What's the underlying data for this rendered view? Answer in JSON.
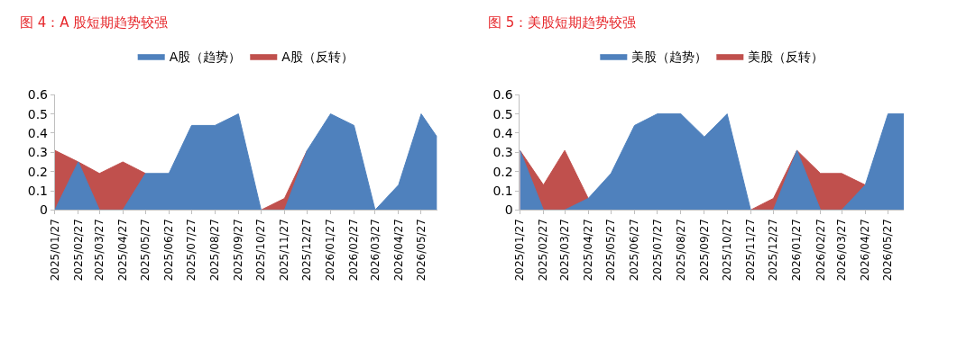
{
  "chart_data": [
    {
      "type": "area",
      "title": "图 4：A 股短期趋势较强",
      "legend": "top",
      "grid": false,
      "x": [
        "2025-01-27",
        "2025-02-27",
        "2025-03-27",
        "2025-04-27",
        "2025-05-27",
        "2025-06-27",
        "2025-07-27",
        "2025-08-27",
        "2025-09-27",
        "2025-10-27",
        "2025-11-27",
        "2025-12-27",
        "2026-01-27",
        "2026-02-27",
        "2026-03-27",
        "2026-04-27",
        "2026-05-27",
        "2026-06-17"
      ],
      "xlim": [
        "2025-01-27",
        "2026-06-17"
      ],
      "xticks": [
        {
          "value": "2025-01-27",
          "label": "2025/01/27"
        },
        {
          "value": "2025-02-27",
          "label": "2025/02/27"
        },
        {
          "value": "2025-03-27",
          "label": "2025/03/27"
        },
        {
          "value": "2025-04-27",
          "label": "2025/04/27"
        },
        {
          "value": "2025-05-27",
          "label": "2025/05/27"
        },
        {
          "value": "2025-06-27",
          "label": "2025/06/27"
        },
        {
          "value": "2025-07-27",
          "label": "2025/07/27"
        },
        {
          "value": "2025-08-27",
          "label": "2025/08/27"
        },
        {
          "value": "2025-09-27",
          "label": "2025/09/27"
        },
        {
          "value": "2025-10-27",
          "label": "2025/10/27"
        },
        {
          "value": "2025-11-27",
          "label": "2025/11/27"
        },
        {
          "value": "2025-12-27",
          "label": "2025/12/27"
        },
        {
          "value": "2026-01-27",
          "label": "2026/01/27"
        },
        {
          "value": "2026-02-27",
          "label": "2026/02/27"
        },
        {
          "value": "2026-03-27",
          "label": "2026/03/27"
        },
        {
          "value": "2026-04-27",
          "label": "2026/04/27"
        },
        {
          "value": "2026-05-27",
          "label": "2026/05/27"
        }
      ],
      "ylim": [
        0,
        0.6
      ],
      "yticks": [
        0,
        0.1,
        0.2,
        0.3,
        0.4,
        0.5,
        0.6
      ],
      "series": [
        {
          "name": "A股（趋势）",
          "color": "#4f81bd",
          "values": [
            0,
            0.25,
            0,
            0,
            0.19,
            0.19,
            0.44,
            0.44,
            0.5,
            0,
            0,
            0.31,
            0.5,
            0.44,
            0,
            0.13,
            0.5,
            0.38
          ]
        },
        {
          "name": "A股（反转）",
          "color": "#c0504d",
          "values": [
            0.31,
            0.25,
            0.19,
            0.25,
            0.19,
            null,
            null,
            null,
            null,
            0,
            0.06,
            0.31,
            null,
            null,
            0,
            null,
            null,
            null
          ]
        }
      ]
    },
    {
      "type": "area",
      "title": "图 5：美股短期趋势较强",
      "legend": "top",
      "grid": false,
      "x": [
        "2025-01-27",
        "2025-02-27",
        "2025-03-27",
        "2025-04-27",
        "2025-05-27",
        "2025-06-27",
        "2025-07-27",
        "2025-08-27",
        "2025-09-27",
        "2025-10-27",
        "2025-11-27",
        "2025-12-27",
        "2026-01-27",
        "2026-02-27",
        "2026-03-27",
        "2026-04-27",
        "2026-05-27",
        "2026-06-17"
      ],
      "xlim": [
        "2025-01-27",
        "2026-06-17"
      ],
      "xticks": [
        {
          "value": "2025-01-27",
          "label": "2025/01/27"
        },
        {
          "value": "2025-02-27",
          "label": "2025/02/27"
        },
        {
          "value": "2025-03-27",
          "label": "2025/03/27"
        },
        {
          "value": "2025-04-27",
          "label": "2025/04/27"
        },
        {
          "value": "2025-05-27",
          "label": "2025/05/27"
        },
        {
          "value": "2025-06-27",
          "label": "2025/06/27"
        },
        {
          "value": "2025-07-27",
          "label": "2025/07/27"
        },
        {
          "value": "2025-08-27",
          "label": "2025/08/27"
        },
        {
          "value": "2025-09-27",
          "label": "2025/09/27"
        },
        {
          "value": "2025-10-27",
          "label": "2025/10/27"
        },
        {
          "value": "2025-11-27",
          "label": "2025/11/27"
        },
        {
          "value": "2025-12-27",
          "label": "2025/12/27"
        },
        {
          "value": "2026-01-27",
          "label": "2026/01/27"
        },
        {
          "value": "2026-02-27",
          "label": "2026/02/27"
        },
        {
          "value": "2026-03-27",
          "label": "2026/03/27"
        },
        {
          "value": "2026-04-27",
          "label": "2026/04/27"
        },
        {
          "value": "2026-05-27",
          "label": "2026/05/27"
        }
      ],
      "ylim": [
        0,
        0.6
      ],
      "yticks": [
        0,
        0.1,
        0.2,
        0.3,
        0.4,
        0.5,
        0.6
      ],
      "series": [
        {
          "name": "美股（趋势）",
          "color": "#4f81bd",
          "values": [
            0.31,
            0,
            0,
            0.06,
            0.19,
            0.44,
            0.5,
            0.5,
            0.38,
            0.5,
            0,
            0,
            0.31,
            0,
            0,
            0.13,
            0.5,
            0.5
          ]
        },
        {
          "name": "美股（反转）",
          "color": "#c0504d",
          "values": [
            0.31,
            0.13,
            0.31,
            0.06,
            null,
            null,
            null,
            null,
            null,
            null,
            0,
            0.06,
            0.31,
            0.19,
            0.19,
            0.13,
            null,
            null
          ]
        }
      ]
    }
  ]
}
